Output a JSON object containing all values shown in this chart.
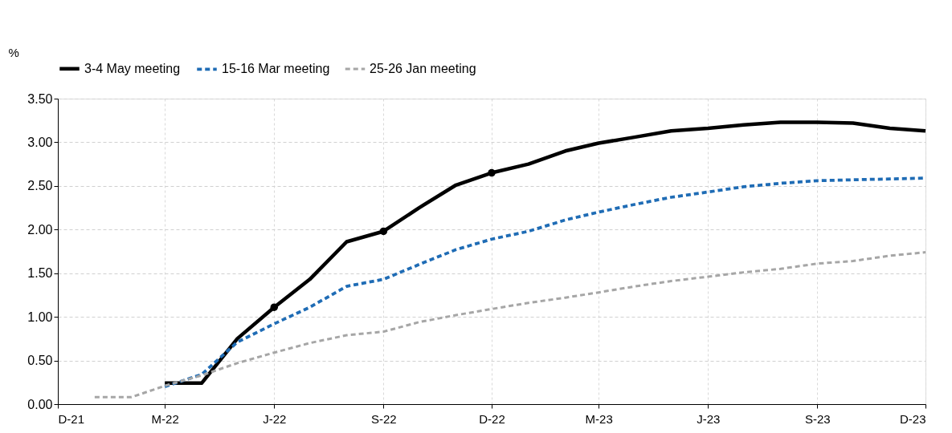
{
  "chart_data": {
    "type": "line",
    "ylabel": "%",
    "legend": "top left",
    "grid": true,
    "marker": "none",
    "xlim": [
      "2021-12",
      "2023-12"
    ],
    "xticks": [
      {
        "value": "2021-12",
        "label": "D-21"
      },
      {
        "value": "2022-03",
        "label": "M-22"
      },
      {
        "value": "2022-06",
        "label": "J-22"
      },
      {
        "value": "2022-09",
        "label": "S-22"
      },
      {
        "value": "2022-12",
        "label": "D-22"
      },
      {
        "value": "2023-03",
        "label": "M-23"
      },
      {
        "value": "2023-06",
        "label": "J-23"
      },
      {
        "value": "2023-09",
        "label": "S-23"
      },
      {
        "value": "2023-12",
        "label": "D-23"
      }
    ],
    "ylim": [
      0,
      3.5
    ],
    "yticks": [
      {
        "value": 0,
        "label": "0.00"
      },
      {
        "value": 0.5,
        "label": "0.50"
      },
      {
        "value": 1,
        "label": "1.00"
      },
      {
        "value": 1.5,
        "label": "1.50"
      },
      {
        "value": 2,
        "label": "2.00"
      },
      {
        "value": 2.5,
        "label": "2.50"
      },
      {
        "value": 3,
        "label": "3.00"
      },
      {
        "value": 3.5,
        "label": "3.50"
      }
    ],
    "series": [
      {
        "name": "3-4 May meeting",
        "color": "#000000",
        "line_style": "solid",
        "x": [
          "2022-03",
          "2022-04",
          "2022-05",
          "2022-06",
          "2022-07",
          "2022-08",
          "2022-09",
          "2022-10",
          "2022-11",
          "2022-12",
          "2023-01",
          "2023-02",
          "2023-03",
          "2023-04",
          "2023-05",
          "2023-06",
          "2023-07",
          "2023-08",
          "2023-09",
          "2023-10",
          "2023-11",
          "2023-12"
        ],
        "values": [
          0.24,
          0.24,
          0.75,
          1.11,
          1.43,
          1.86,
          1.98,
          2.25,
          2.51,
          2.65,
          2.75,
          2.9,
          2.99,
          3.06,
          3.13,
          3.16,
          3.2,
          3.23,
          3.23,
          3.22,
          3.16,
          3.13
        ]
      },
      {
        "name": "15-16 Mar meeting",
        "color": "#1f6cb5",
        "line_style": "dashed",
        "x": [
          "2022-03",
          "2022-04",
          "2022-05",
          "2022-06",
          "2022-07",
          "2022-08",
          "2022-09",
          "2022-10",
          "2022-11",
          "2022-12",
          "2023-01",
          "2023-02",
          "2023-03",
          "2023-04",
          "2023-05",
          "2023-06",
          "2023-07",
          "2023-08",
          "2023-09",
          "2023-10",
          "2023-11",
          "2023-12"
        ],
        "values": [
          0.2,
          0.34,
          0.71,
          0.92,
          1.11,
          1.35,
          1.43,
          1.6,
          1.77,
          1.89,
          1.98,
          2.11,
          2.2,
          2.29,
          2.37,
          2.43,
          2.49,
          2.53,
          2.56,
          2.57,
          2.58,
          2.59
        ]
      },
      {
        "name": "25-26 Jan meeting",
        "color": "#a6a6a6",
        "line_style": "dashed",
        "x": [
          "2022-01",
          "2022-02",
          "2022-03",
          "2022-04",
          "2022-05",
          "2022-06",
          "2022-07",
          "2022-08",
          "2022-09",
          "2022-10",
          "2022-11",
          "2022-12",
          "2023-01",
          "2023-02",
          "2023-03",
          "2023-04",
          "2023-05",
          "2023-06",
          "2023-07",
          "2023-08",
          "2023-09",
          "2023-10",
          "2023-11",
          "2023-12"
        ],
        "values": [
          0.08,
          0.08,
          0.21,
          0.33,
          0.47,
          0.59,
          0.7,
          0.79,
          0.83,
          0.94,
          1.02,
          1.09,
          1.16,
          1.22,
          1.28,
          1.35,
          1.41,
          1.46,
          1.51,
          1.55,
          1.61,
          1.64,
          1.7,
          1.74
        ]
      },
      {
        "type": "scatter",
        "color": "#000000",
        "marker": "circle",
        "x": [
          "2022-06",
          "2022-09",
          "2022-12"
        ],
        "values": [
          1.11,
          1.98,
          2.65
        ]
      }
    ]
  }
}
